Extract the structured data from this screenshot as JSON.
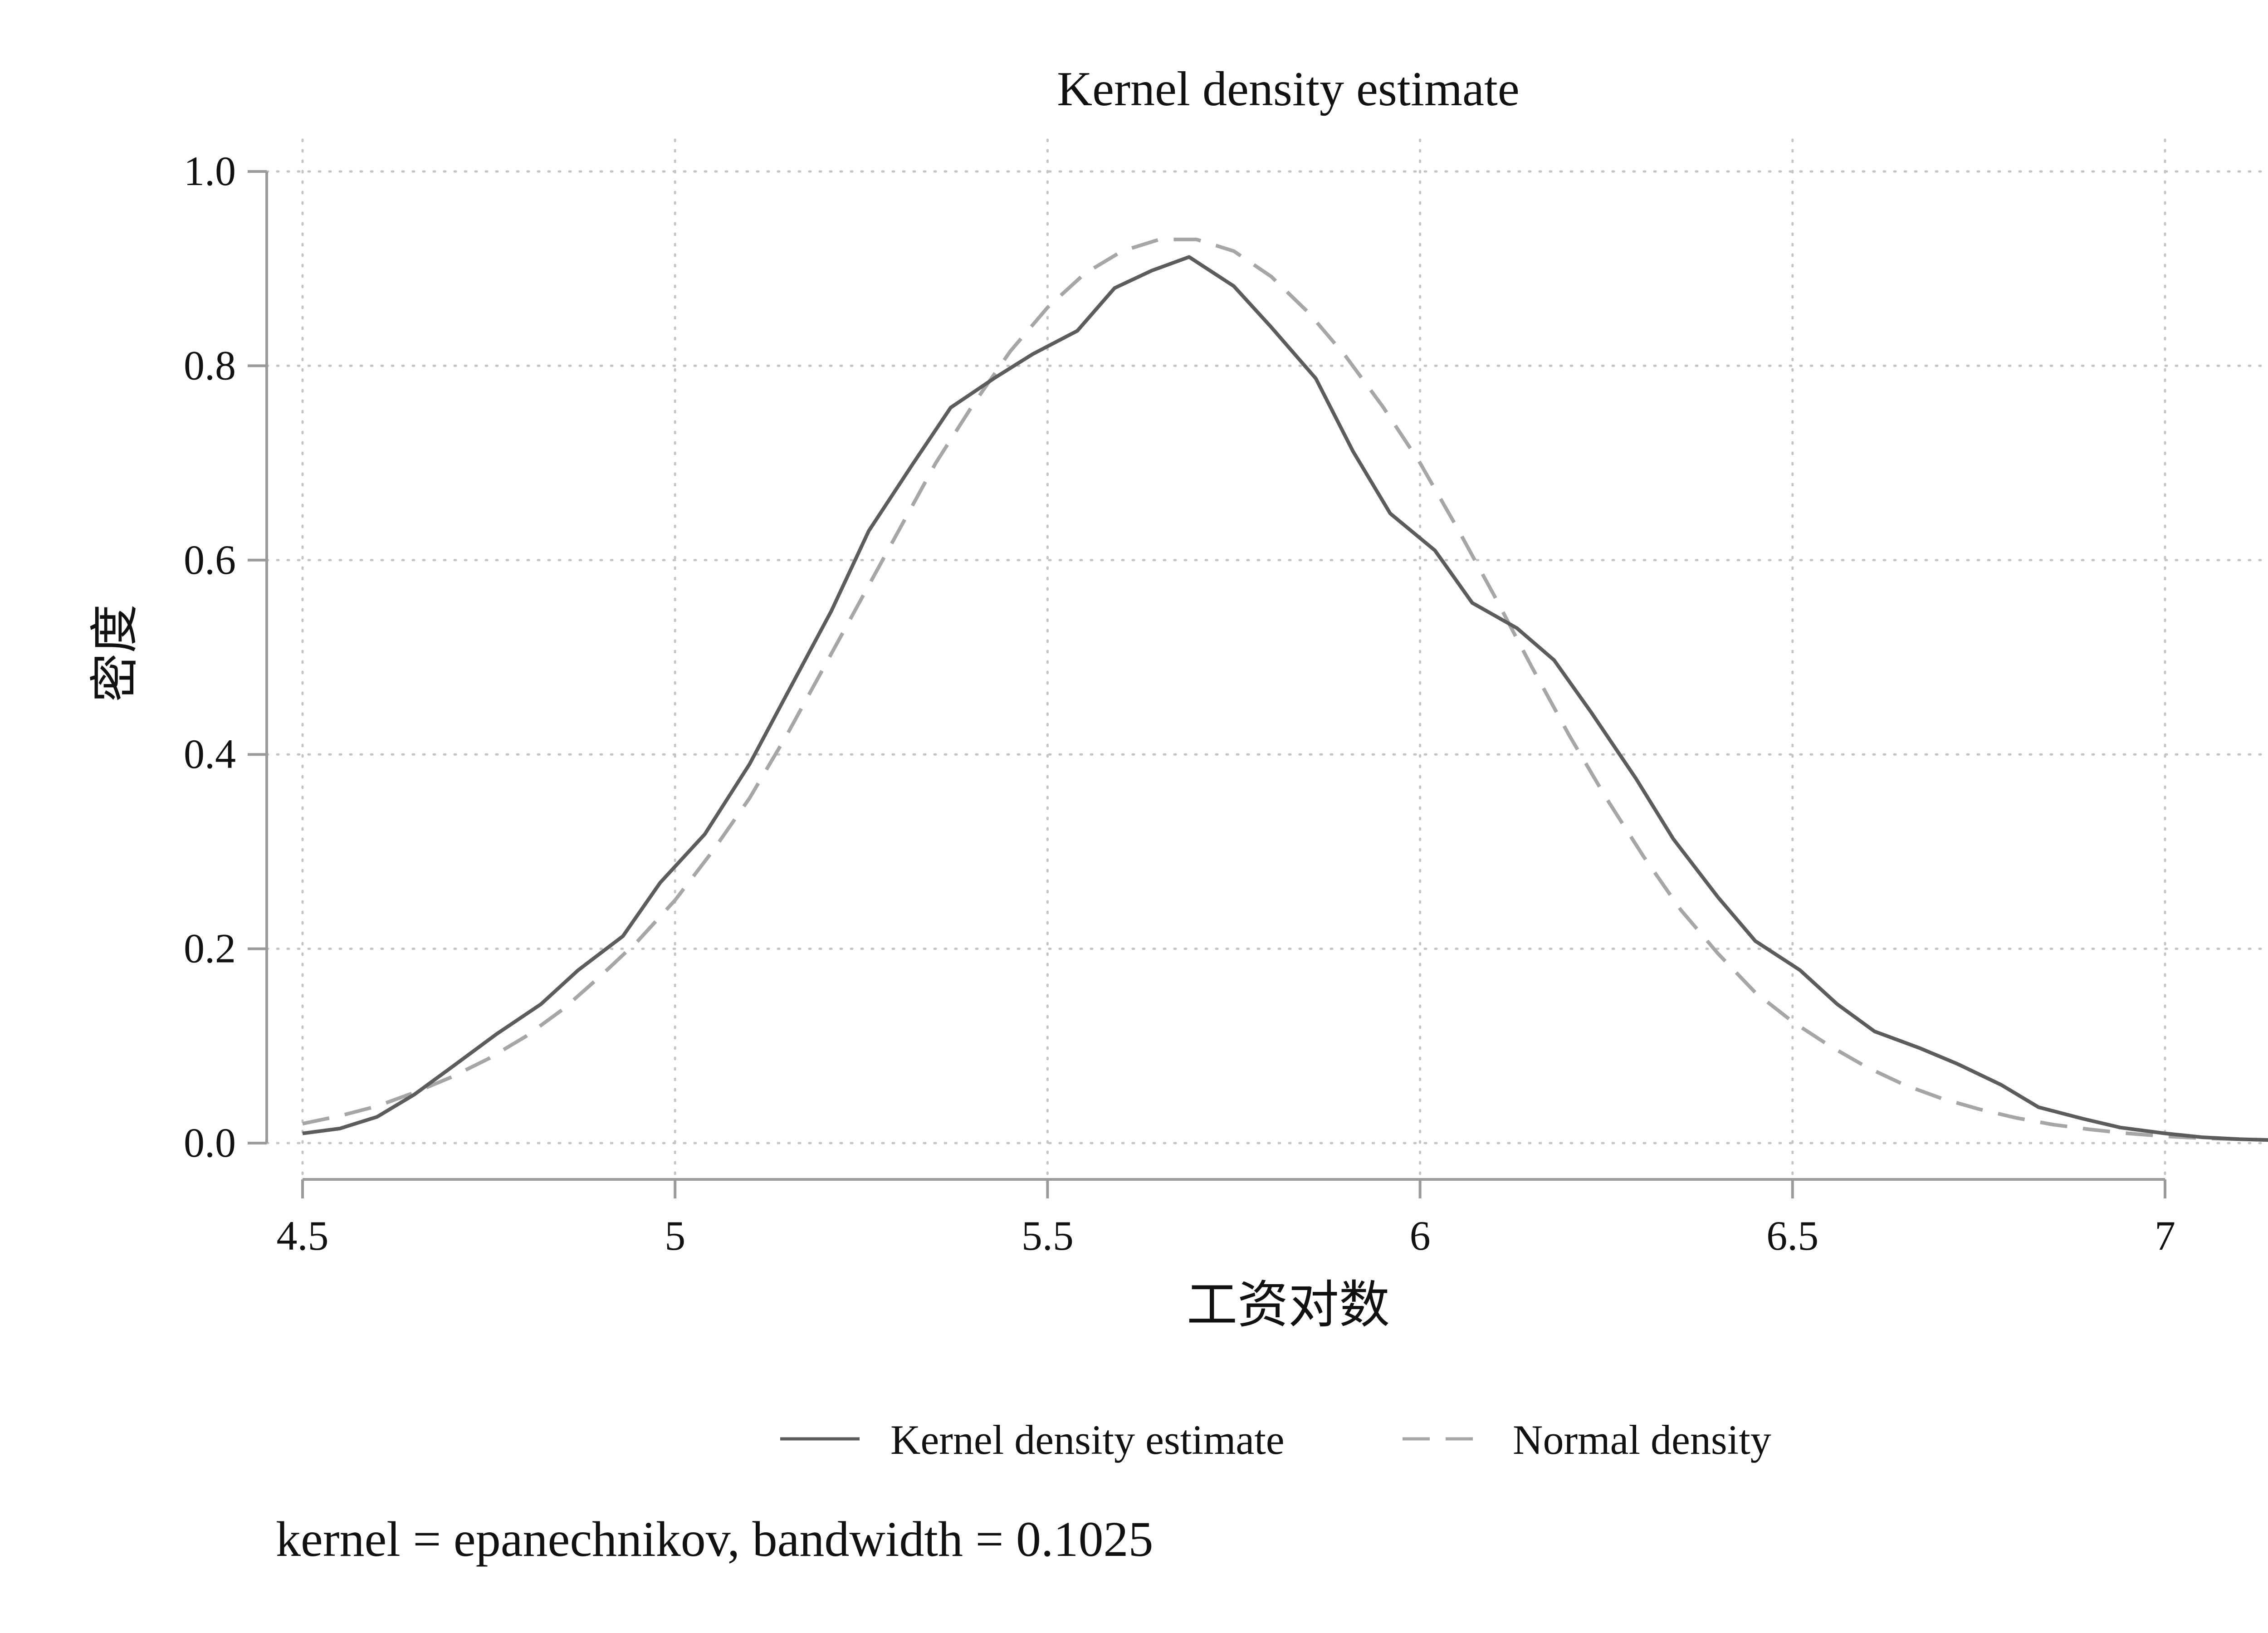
{
  "chart_data": {
    "type": "line",
    "title": "Kernel density estimate",
    "xlabel": "工资对数",
    "ylabel": "密度",
    "xlim": [
      4.5,
      7.0
    ],
    "ylim": [
      0.0,
      1.0
    ],
    "x_ticks": [
      4.5,
      5.0,
      5.5,
      6.0,
      6.5,
      7.0
    ],
    "x_tick_labels": [
      "4.5",
      "5",
      "5.5",
      "6",
      "6.5",
      "7"
    ],
    "y_ticks": [
      0.0,
      0.2,
      0.4,
      0.6,
      0.8,
      1.0
    ],
    "y_tick_labels": [
      "0.0",
      "0.2",
      "0.4",
      "0.6",
      "0.8",
      "1.0"
    ],
    "grid": true,
    "legend_position": "bottom",
    "note": "kernel = epanechnikov, bandwidth = 0.1025",
    "series": [
      {
        "name": "Kernel density estimate",
        "style": "solid",
        "color": "#5c5c5c",
        "points": [
          [
            4.5,
            0.01
          ],
          [
            4.55,
            0.015
          ],
          [
            4.6,
            0.027
          ],
          [
            4.65,
            0.05
          ],
          [
            4.7,
            0.078
          ],
          [
            4.76,
            0.112
          ],
          [
            4.82,
            0.143
          ],
          [
            4.87,
            0.178
          ],
          [
            4.93,
            0.213
          ],
          [
            4.98,
            0.268
          ],
          [
            5.04,
            0.318
          ],
          [
            5.1,
            0.39
          ],
          [
            5.15,
            0.462
          ],
          [
            5.21,
            0.548
          ],
          [
            5.26,
            0.63
          ],
          [
            5.32,
            0.7
          ],
          [
            5.37,
            0.757
          ],
          [
            5.43,
            0.788
          ],
          [
            5.48,
            0.812
          ],
          [
            5.54,
            0.836
          ],
          [
            5.59,
            0.88
          ],
          [
            5.64,
            0.898
          ],
          [
            5.69,
            0.912
          ],
          [
            5.75,
            0.882
          ],
          [
            5.8,
            0.84
          ],
          [
            5.86,
            0.787
          ],
          [
            5.91,
            0.712
          ],
          [
            5.96,
            0.648
          ],
          [
            6.02,
            0.61
          ],
          [
            6.07,
            0.556
          ],
          [
            6.13,
            0.53
          ],
          [
            6.18,
            0.497
          ],
          [
            6.23,
            0.443
          ],
          [
            6.29,
            0.375
          ],
          [
            6.34,
            0.313
          ],
          [
            6.4,
            0.253
          ],
          [
            6.45,
            0.208
          ],
          [
            6.51,
            0.178
          ],
          [
            6.56,
            0.143
          ],
          [
            6.61,
            0.115
          ],
          [
            6.67,
            0.098
          ],
          [
            6.72,
            0.082
          ],
          [
            6.78,
            0.06
          ],
          [
            6.83,
            0.037
          ],
          [
            6.89,
            0.025
          ],
          [
            6.94,
            0.016
          ],
          [
            7.0,
            0.01
          ],
          [
            7.05,
            0.006
          ],
          [
            7.1,
            0.004
          ],
          [
            7.15,
            0.003
          ]
        ]
      },
      {
        "name": "Normal density",
        "style": "dashed",
        "color": "#a6a6a6",
        "points": [
          [
            4.5,
            0.02
          ],
          [
            4.55,
            0.028
          ],
          [
            4.6,
            0.038
          ],
          [
            4.65,
            0.052
          ],
          [
            4.7,
            0.068
          ],
          [
            4.75,
            0.087
          ],
          [
            4.8,
            0.11
          ],
          [
            4.85,
            0.138
          ],
          [
            4.9,
            0.172
          ],
          [
            4.95,
            0.208
          ],
          [
            5.0,
            0.25
          ],
          [
            5.05,
            0.3
          ],
          [
            5.1,
            0.355
          ],
          [
            5.15,
            0.42
          ],
          [
            5.2,
            0.49
          ],
          [
            5.25,
            0.56
          ],
          [
            5.3,
            0.63
          ],
          [
            5.35,
            0.7
          ],
          [
            5.4,
            0.76
          ],
          [
            5.45,
            0.815
          ],
          [
            5.5,
            0.86
          ],
          [
            5.55,
            0.895
          ],
          [
            5.6,
            0.918
          ],
          [
            5.65,
            0.93
          ],
          [
            5.7,
            0.93
          ],
          [
            5.75,
            0.918
          ],
          [
            5.8,
            0.892
          ],
          [
            5.85,
            0.855
          ],
          [
            5.9,
            0.81
          ],
          [
            5.95,
            0.758
          ],
          [
            6.0,
            0.7
          ],
          [
            6.05,
            0.633
          ],
          [
            6.1,
            0.563
          ],
          [
            6.15,
            0.49
          ],
          [
            6.2,
            0.42
          ],
          [
            6.25,
            0.355
          ],
          [
            6.3,
            0.295
          ],
          [
            6.35,
            0.24
          ],
          [
            6.4,
            0.195
          ],
          [
            6.45,
            0.155
          ],
          [
            6.5,
            0.125
          ],
          [
            6.55,
            0.1
          ],
          [
            6.6,
            0.078
          ],
          [
            6.65,
            0.06
          ],
          [
            6.7,
            0.046
          ],
          [
            6.75,
            0.035
          ],
          [
            6.8,
            0.026
          ],
          [
            6.85,
            0.019
          ],
          [
            6.9,
            0.014
          ],
          [
            6.95,
            0.01
          ],
          [
            7.0,
            0.007
          ],
          [
            7.05,
            0.005
          ],
          [
            7.1,
            0.004
          ],
          [
            7.15,
            0.003
          ]
        ]
      }
    ]
  }
}
